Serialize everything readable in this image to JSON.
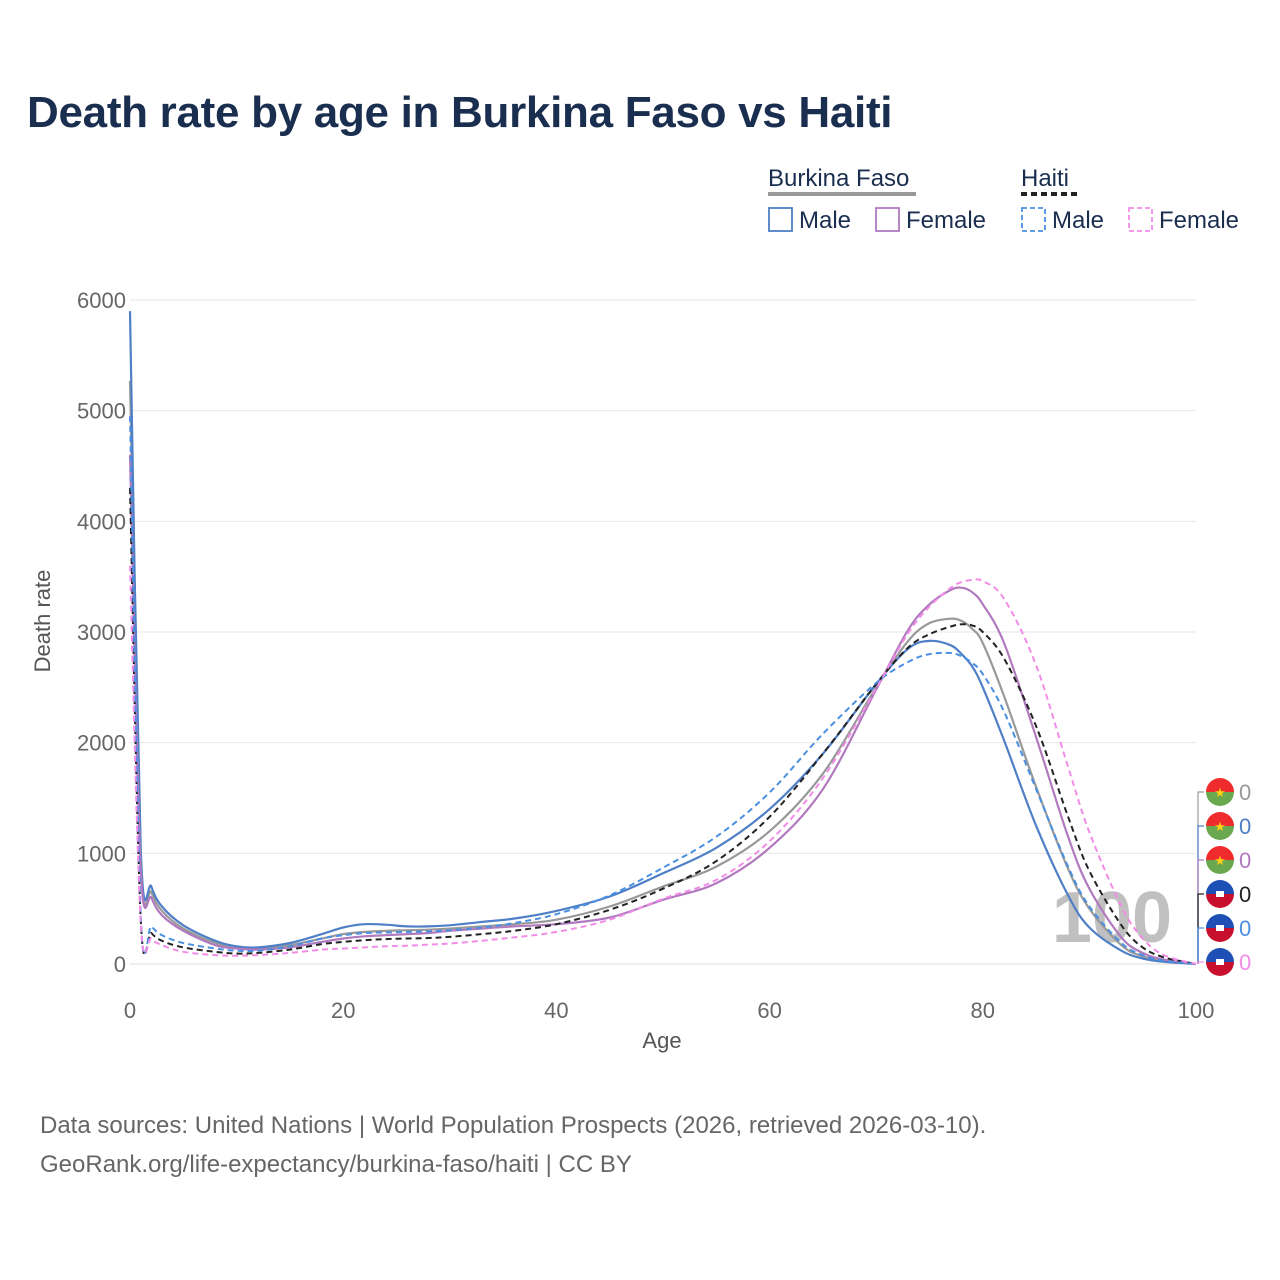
{
  "chart_data": {
    "type": "line",
    "title": "Death rate by age in Burkina Faso vs Haiti",
    "xlabel": "Age",
    "ylabel": "Death rate",
    "xlim": [
      0,
      100
    ],
    "ylim": [
      0,
      6000
    ],
    "x_ticks": [
      0,
      20,
      40,
      60,
      80,
      100
    ],
    "y_ticks": [
      0,
      1000,
      2000,
      3000,
      4000,
      5000,
      6000
    ],
    "grid": true,
    "age_indicator": "100",
    "legend": {
      "groups": [
        {
          "name": "Burkina Faso",
          "items": [
            "Male",
            "Female"
          ]
        },
        {
          "name": "Haiti",
          "items": [
            "Male",
            "Female"
          ]
        }
      ]
    },
    "x": [
      0,
      1,
      2,
      3,
      5,
      8,
      10,
      12,
      15,
      18,
      20,
      22,
      24,
      26,
      28,
      30,
      33,
      36,
      40,
      45,
      50,
      55,
      60,
      65,
      70,
      73,
      75,
      77,
      78,
      79,
      80,
      82,
      85,
      88,
      90,
      93,
      95,
      97,
      100
    ],
    "series": [
      {
        "name": "Burkina Faso Total",
        "color": "#999999",
        "dash": "solid",
        "end_value": "0",
        "values": [
          5270,
          950,
          650,
          480,
          320,
          190,
          150,
          140,
          170,
          230,
          270,
          290,
          300,
          305,
          310,
          320,
          340,
          360,
          400,
          520,
          700,
          880,
          1200,
          1720,
          2500,
          2920,
          3080,
          3120,
          3100,
          3030,
          2900,
          2420,
          1600,
          860,
          500,
          170,
          70,
          30,
          0
        ]
      },
      {
        "name": "Burkina Faso Male",
        "color": "#4f7fc6",
        "dash": "solid",
        "end_value": "0",
        "values": [
          5900,
          1050,
          700,
          520,
          350,
          210,
          160,
          150,
          190,
          270,
          330,
          360,
          355,
          340,
          340,
          350,
          380,
          410,
          480,
          610,
          820,
          1050,
          1400,
          1900,
          2530,
          2850,
          2920,
          2880,
          2800,
          2690,
          2500,
          2020,
          1250,
          620,
          330,
          120,
          50,
          20,
          0
        ]
      },
      {
        "name": "Burkina Faso Female",
        "color": "#b17abf",
        "dash": "solid",
        "end_value": "0",
        "values": [
          4600,
          870,
          600,
          440,
          300,
          170,
          140,
          130,
          150,
          200,
          230,
          250,
          260,
          270,
          280,
          300,
          320,
          340,
          360,
          420,
          580,
          730,
          1050,
          1580,
          2480,
          3020,
          3250,
          3380,
          3400,
          3360,
          3250,
          2900,
          2050,
          1150,
          680,
          240,
          100,
          40,
          0
        ]
      },
      {
        "name": "Haiti Total",
        "color": "#222222",
        "dash": "dashed",
        "end_value": "0",
        "values": [
          4300,
          410,
          280,
          210,
          150,
          110,
          95,
          100,
          130,
          180,
          200,
          215,
          225,
          230,
          235,
          245,
          270,
          300,
          360,
          490,
          680,
          930,
          1330,
          1900,
          2530,
          2860,
          2980,
          3050,
          3070,
          3060,
          3000,
          2760,
          2150,
          1330,
          840,
          350,
          150,
          60,
          0
        ]
      },
      {
        "name": "Haiti Male",
        "color": "#4a90e2",
        "dash": "dashed",
        "end_value": "0",
        "values": [
          4950,
          450,
          340,
          260,
          190,
          140,
          120,
          120,
          160,
          230,
          260,
          280,
          285,
          290,
          295,
          305,
          330,
          370,
          450,
          620,
          870,
          1150,
          1550,
          2080,
          2540,
          2730,
          2800,
          2810,
          2780,
          2720,
          2620,
          2280,
          1580,
          880,
          520,
          190,
          80,
          30,
          0
        ]
      },
      {
        "name": "Haiti Female",
        "color": "#f28ce8",
        "dash": "dashed",
        "end_value": "0",
        "values": [
          3600,
          380,
          230,
          170,
          110,
          80,
          75,
          80,
          100,
          130,
          140,
          150,
          160,
          165,
          175,
          185,
          210,
          240,
          290,
          400,
          590,
          760,
          1110,
          1680,
          2490,
          2990,
          3230,
          3400,
          3450,
          3470,
          3460,
          3300,
          2700,
          1780,
          1190,
          520,
          230,
          80,
          0
        ]
      }
    ]
  },
  "footer": {
    "line1": "Data sources: United Nations | World Population Prospects (2026, retrieved 2026-03-10).",
    "line2": "GeoRank.org/life-expectancy/burkina-faso/haiti | CC BY"
  }
}
